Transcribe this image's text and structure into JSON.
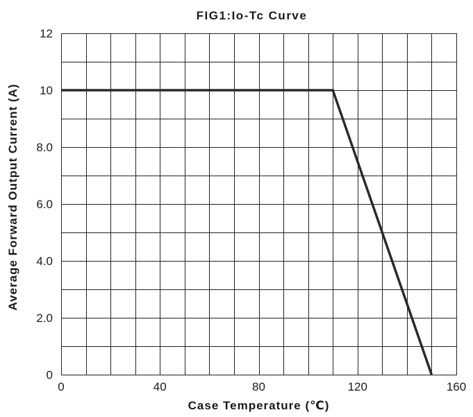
{
  "chart_data": {
    "type": "line",
    "title": "FIG1:Io-Tc Curve",
    "xlabel": "Case Temperature (℃)",
    "ylabel": "Average Forward Output Current (A)",
    "xlim": [
      0,
      160
    ],
    "ylim": [
      0,
      12
    ],
    "x_ticks": [
      "0",
      "40",
      "80",
      "120",
      "160"
    ],
    "x_tick_values": [
      0,
      40,
      80,
      120,
      160
    ],
    "y_ticks": [
      "0",
      "2.0",
      "4.0",
      "6.0",
      "8.0",
      "10",
      "12"
    ],
    "y_tick_values": [
      0,
      2,
      4,
      6,
      8,
      10,
      12
    ],
    "x_grid_step": 10,
    "y_grid_step": 1,
    "grid": true,
    "legend": "none",
    "series": [
      {
        "x": [
          0,
          110,
          150
        ],
        "y": [
          10,
          10,
          0
        ]
      }
    ]
  }
}
